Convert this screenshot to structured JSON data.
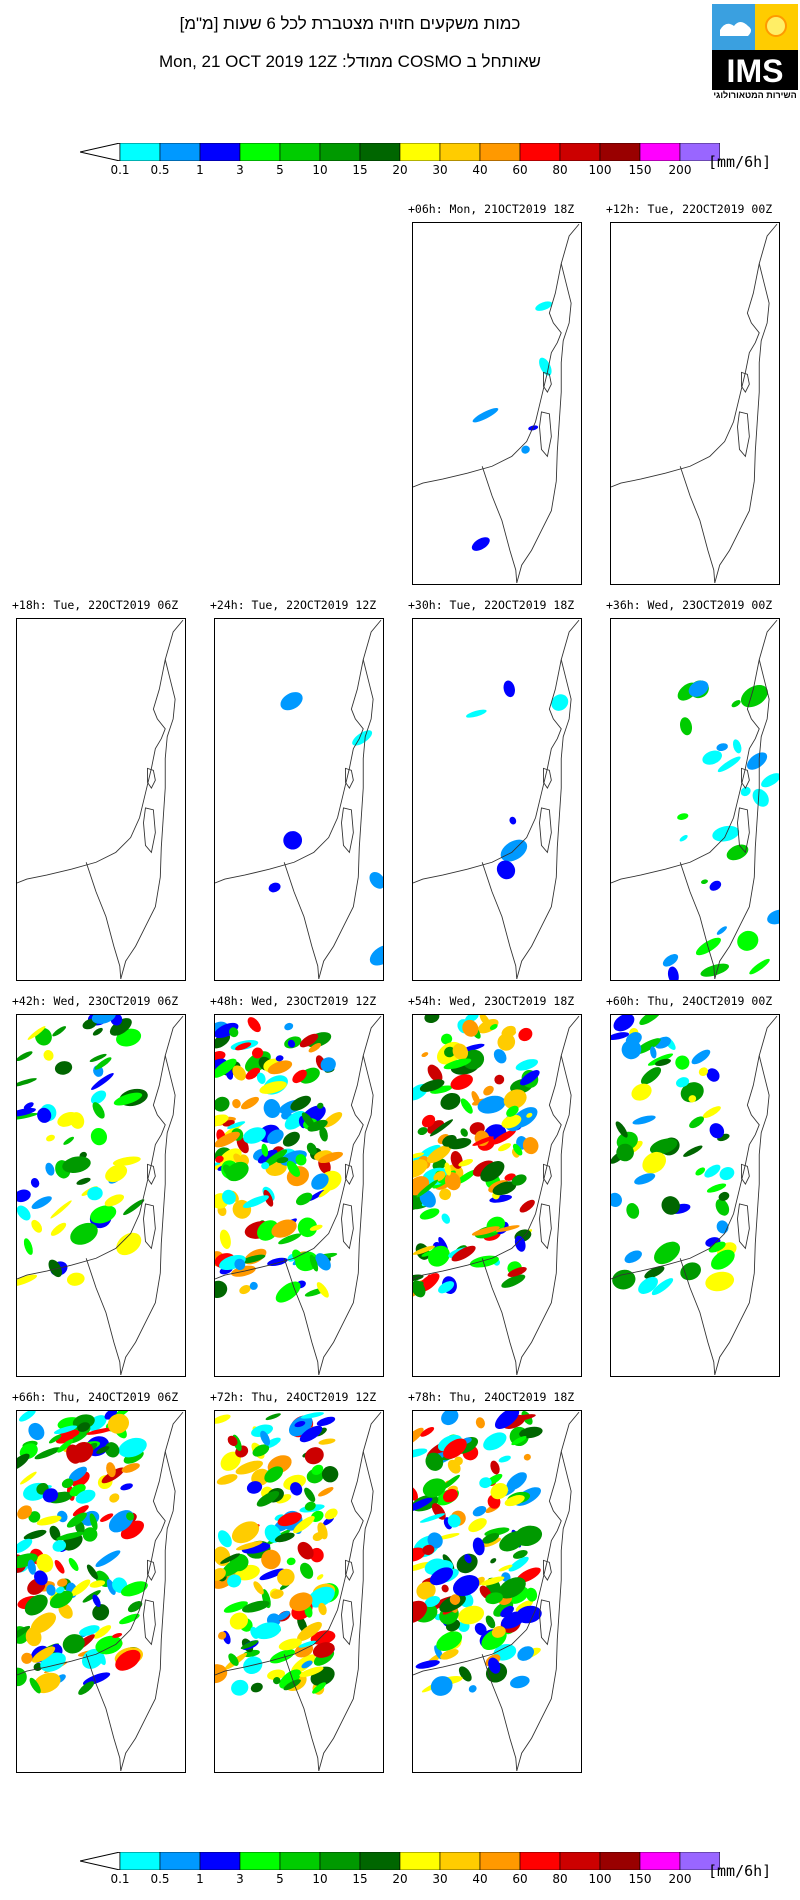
{
  "header": {
    "title_he": "כמות משקעים חזויה מצטברת לכל 6 שעות [מ\"מ]",
    "subtitle": "Mon, 21 OCT 2019 12Z  :ממודל COSMO שאותחל ב"
  },
  "logo": {
    "text": "IMS",
    "subtitle_he": "השירות המטאורולוגי"
  },
  "colorbar": {
    "unit": "[mm/6h]",
    "ticks": [
      "0.1",
      "0.5",
      "1",
      "3",
      "5",
      "10",
      "15",
      "20",
      "30",
      "40",
      "60",
      "80",
      "100",
      "150",
      "200"
    ],
    "colors": [
      "#00ffff",
      "#0099ff",
      "#0000ff",
      "#00ff00",
      "#00cc00",
      "#009900",
      "#006600",
      "#ffff00",
      "#ffcc00",
      "#ff9900",
      "#ff0000",
      "#cc0000",
      "#990000",
      "#ff00ff",
      "#9966ff"
    ],
    "end_colors": {
      "low": "#ffffff",
      "high": "#888877"
    }
  },
  "panels": [
    {
      "label": "+06h: Mon, 21OCT2019 18Z",
      "intensity": 1
    },
    {
      "label": "+12h: Tue, 22OCT2019 00Z",
      "intensity": 0
    },
    {
      "label": "+18h: Tue, 22OCT2019 06Z",
      "intensity": 0
    },
    {
      "label": "+24h: Tue, 22OCT2019 12Z",
      "intensity": 1
    },
    {
      "label": "+30h: Tue, 22OCT2019 18Z",
      "intensity": 1
    },
    {
      "label": "+36h: Wed, 23OCT2019 00Z",
      "intensity": 2
    },
    {
      "label": "+42h: Wed, 23OCT2019 06Z",
      "intensity": 3
    },
    {
      "label": "+48h: Wed, 23OCT2019 12Z",
      "intensity": 4
    },
    {
      "label": "+54h: Wed, 23OCT2019 18Z",
      "intensity": 4
    },
    {
      "label": "+60h: Thu, 24OCT2019 00Z",
      "intensity": 3
    },
    {
      "label": "+66h: Thu, 24OCT2019 06Z",
      "intensity": 4
    },
    {
      "label": "+72h: Thu, 24OCT2019 12Z",
      "intensity": 4
    },
    {
      "label": "+78h: Thu, 24OCT2019 18Z",
      "intensity": 4
    }
  ]
}
